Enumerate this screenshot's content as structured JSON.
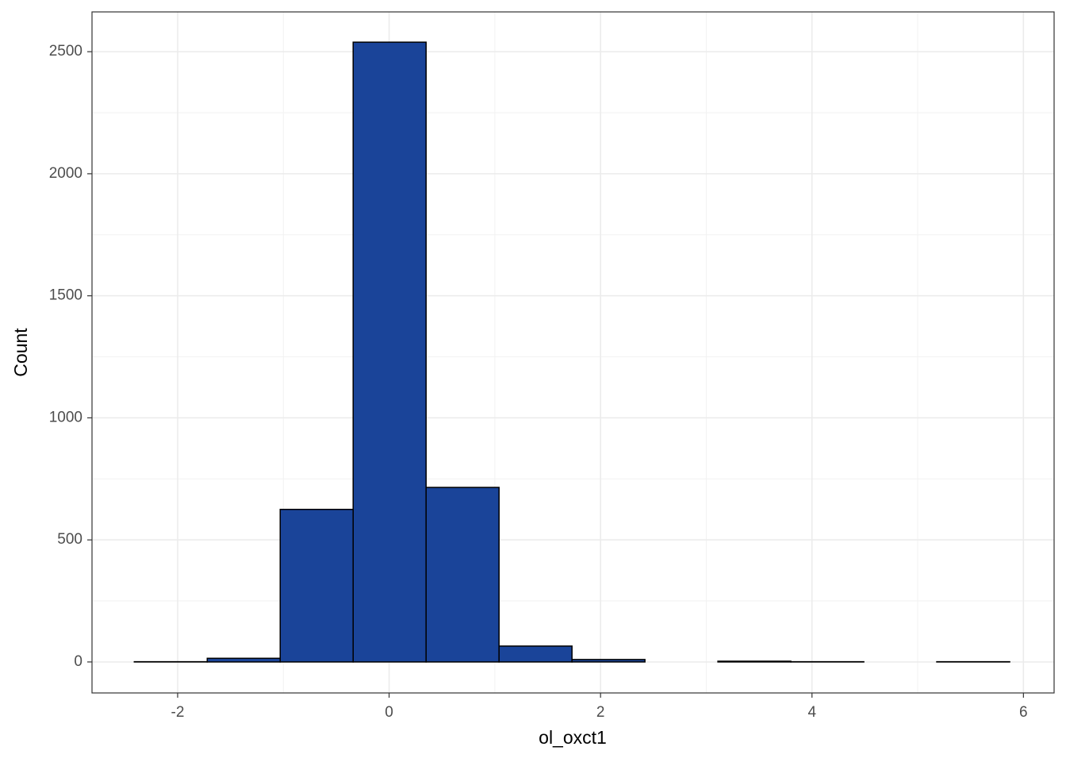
{
  "chart_data": {
    "type": "histogram",
    "x_label": "ol_oxct1",
    "y_label": "Count",
    "bins": [
      -2.41,
      -1.72,
      -1.03,
      -0.34,
      0.35,
      1.04,
      1.73,
      2.42,
      3.11,
      3.8,
      4.49,
      5.18,
      5.87
    ],
    "counts": [
      1,
      15,
      625,
      2539,
      715,
      65,
      10,
      0,
      3,
      1,
      0,
      1
    ],
    "color": "#1a4499",
    "edge_color": "#000000",
    "xlim": [
      -2.81,
      6.29
    ],
    "xticks": [
      -2,
      0,
      2,
      4,
      6
    ],
    "ylim": [
      -127,
      2663
    ],
    "yticks": [
      0,
      500,
      1000,
      1500,
      2000,
      2500
    ],
    "grid": true
  }
}
